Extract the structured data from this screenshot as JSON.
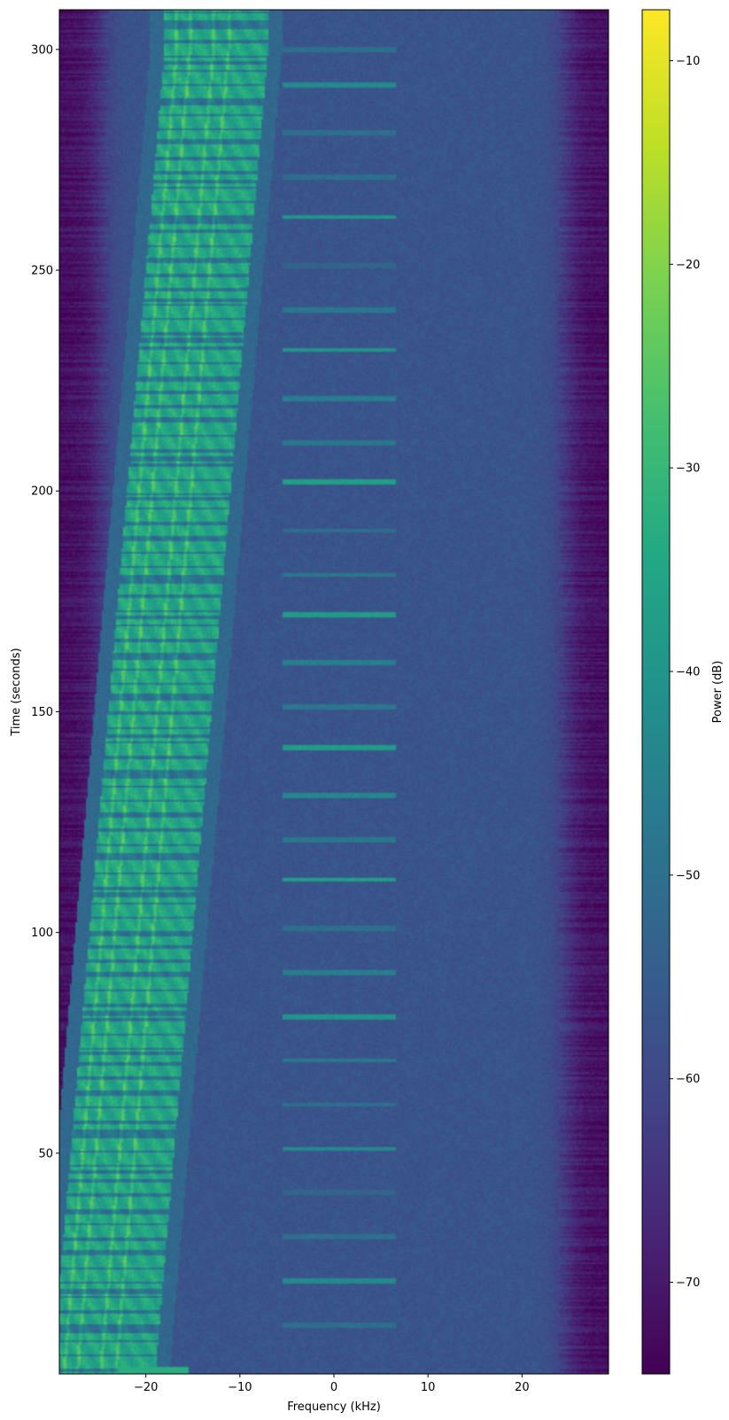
{
  "chart_data": {
    "type": "heatmap",
    "title": "",
    "xlabel": "Frequency (kHz)",
    "ylabel": "Time (seconds)",
    "colorbar_label": "Power (dB)",
    "colormap": "viridis",
    "xlim": [
      -29.2,
      29.2
    ],
    "ylim": [
      0,
      309
    ],
    "clim": [
      -74.5,
      -7.5
    ],
    "x_ticks": [
      -20,
      -10,
      0,
      10,
      20
    ],
    "x_tick_labels": [
      "−20",
      "−10",
      "0",
      "10",
      "20"
    ],
    "y_ticks": [
      50,
      100,
      150,
      200,
      250,
      300
    ],
    "y_tick_labels": [
      "50",
      "100",
      "150",
      "200",
      "250",
      "300"
    ],
    "colorbar_ticks": [
      -70,
      -60,
      -50,
      -40,
      -30,
      -20,
      -10
    ],
    "colorbar_tick_labels": [
      "−70",
      "−60",
      "−50",
      "−40",
      "−30",
      "−20",
      "−10"
    ],
    "noise_floor_db": -57,
    "band_edge_db": -72,
    "drifting_signal": {
      "description_power_db": -35,
      "center_khz_vs_time": [
        [
          0,
          -24.5
        ],
        [
          50,
          -22.5
        ],
        [
          100,
          -20.5
        ],
        [
          150,
          -18.5
        ],
        [
          200,
          -16.5
        ],
        [
          250,
          -14.5
        ],
        [
          300,
          -12.5
        ]
      ],
      "bandwidth_khz": 11,
      "rail_offsets_khz": [
        -4.2,
        -2.8,
        -0.3,
        1.3
      ]
    },
    "bottom_strip": {
      "time_s": [
        0,
        1.5
      ],
      "from_khz": -23,
      "to_khz": -15.5,
      "power_db": -33
    },
    "pulse_lines": {
      "from_khz": -5.5,
      "to_khz": 6.5,
      "times_s": [
        11,
        21,
        31,
        41,
        51,
        61,
        71,
        81,
        91,
        101,
        112,
        121,
        131,
        142,
        151,
        161,
        172,
        181,
        191,
        202,
        211,
        221,
        232,
        241,
        251,
        262,
        271,
        281,
        292,
        300
      ],
      "power_db": [
        -50,
        -43,
        -50,
        -53,
        -43,
        -50,
        -48,
        -40,
        -46,
        -50,
        -37,
        -48,
        -44,
        -38,
        -48,
        -46,
        -38,
        -48,
        -50,
        -37,
        -48,
        -46,
        -40,
        -48,
        -53,
        -40,
        -50,
        -50,
        -43,
        -50
      ]
    }
  }
}
